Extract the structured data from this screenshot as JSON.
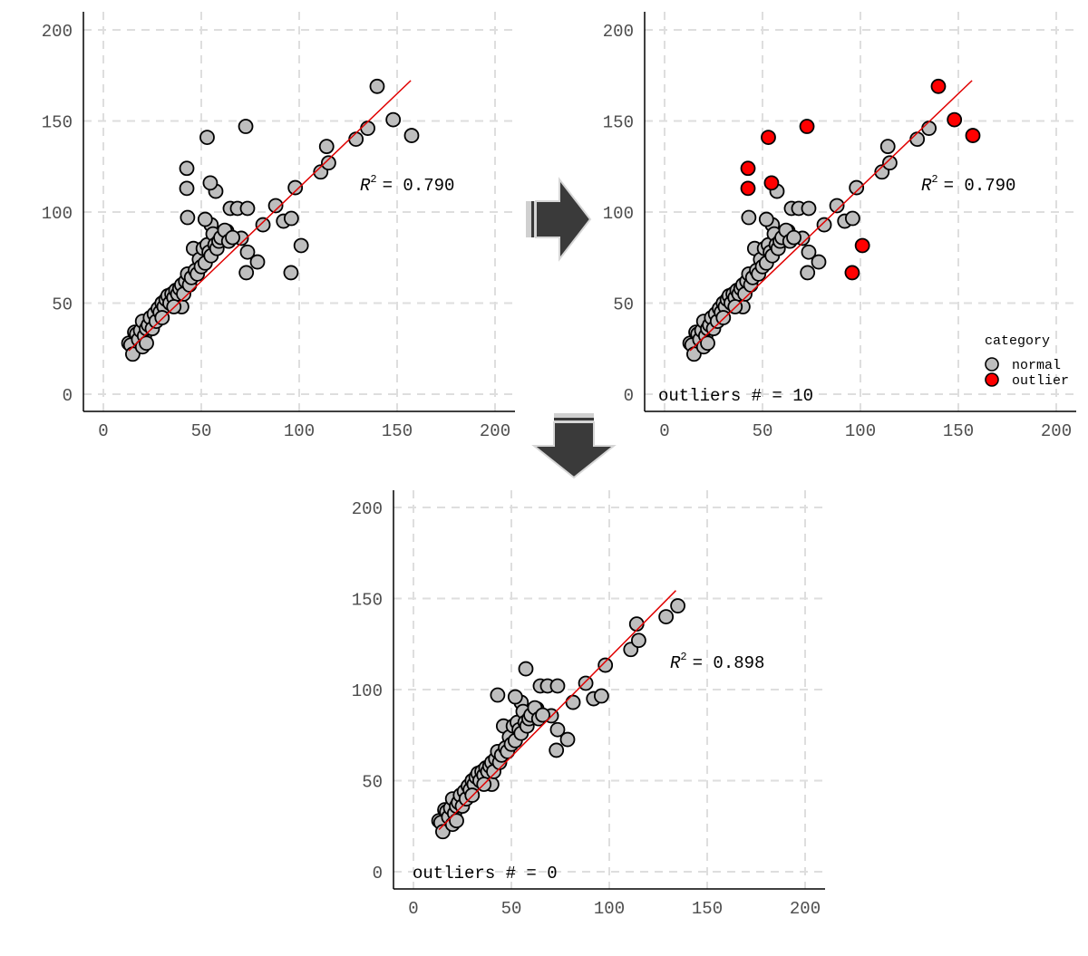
{
  "colors": {
    "normal": "#bebebe",
    "outlier": "#ff0000",
    "fit_line": "#e00000",
    "arrow": "#3a3a3a",
    "grid": "#dedede"
  },
  "legend": {
    "title": "category",
    "items": [
      "normal",
      "outlier"
    ]
  },
  "chart_data": [
    {
      "type": "scatter",
      "title": "",
      "xlabel": "",
      "ylabel": "",
      "xlim": [
        0,
        200
      ],
      "ylim": [
        0,
        200
      ],
      "xticks": [
        "0",
        "50",
        "100",
        "150",
        "200"
      ],
      "yticks": [
        "0",
        "50",
        "100",
        "150",
        "200"
      ],
      "grid": true,
      "includes_outliers": true,
      "colored_by_category": false,
      "annotation_r2": "= 0.790",
      "annotation_outliers": "",
      "fit": {
        "intercept": 10.5,
        "slope": 1.03,
        "x_range": [
          13,
          157
        ]
      }
    },
    {
      "type": "scatter",
      "title": "",
      "xlabel": "",
      "ylabel": "",
      "xlim": [
        0,
        200
      ],
      "ylim": [
        0,
        200
      ],
      "xticks": [
        "0",
        "50",
        "100",
        "150",
        "200"
      ],
      "yticks": [
        "0",
        "50",
        "100",
        "150",
        "200"
      ],
      "grid": true,
      "includes_outliers": true,
      "colored_by_category": true,
      "legend_position": "bottom-right",
      "annotation_r2": "= 0.790",
      "annotation_outliers": "outliers # = 10",
      "fit": {
        "intercept": 10.5,
        "slope": 1.03,
        "x_range": [
          13,
          157
        ]
      }
    },
    {
      "type": "scatter",
      "title": "",
      "xlabel": "",
      "ylabel": "",
      "xlim": [
        0,
        200
      ],
      "ylim": [
        0,
        200
      ],
      "xticks": [
        "0",
        "50",
        "100",
        "150",
        "200"
      ],
      "yticks": [
        "0",
        "50",
        "100",
        "150",
        "200"
      ],
      "grid": true,
      "includes_outliers": false,
      "colored_by_category": false,
      "annotation_r2": "= 0.898",
      "annotation_outliers": "outliers # = 0",
      "fit": {
        "intercept": 9,
        "slope": 1.085,
        "x_range": [
          13,
          134
        ]
      }
    }
  ],
  "points_normal": [
    [
      88,
      103.5
    ],
    [
      98,
      113.4
    ],
    [
      111,
      122
    ],
    [
      114,
      136
    ],
    [
      115,
      127
    ],
    [
      129,
      140
    ],
    [
      135,
      146
    ],
    [
      92,
      95
    ],
    [
      96,
      96.5
    ],
    [
      81.5,
      93
    ],
    [
      78.7,
      72.6
    ],
    [
      73,
      66.7
    ],
    [
      73.6,
      78
    ],
    [
      64.8,
      102
    ],
    [
      68.5,
      102
    ],
    [
      73.6,
      102
    ],
    [
      57.4,
      111.4
    ],
    [
      55,
      93
    ],
    [
      70.4,
      85.6
    ],
    [
      63,
      89.5
    ],
    [
      52,
      96
    ],
    [
      43,
      97
    ],
    [
      13,
      28
    ],
    [
      14,
      27
    ],
    [
      15,
      22
    ],
    [
      16,
      34
    ],
    [
      17,
      33
    ],
    [
      18,
      30
    ],
    [
      19,
      35
    ],
    [
      20,
      40
    ],
    [
      20,
      26
    ],
    [
      21,
      32
    ],
    [
      22,
      36
    ],
    [
      23,
      38
    ],
    [
      24,
      42
    ],
    [
      25,
      36
    ],
    [
      26,
      44
    ],
    [
      27,
      40
    ],
    [
      28,
      47
    ],
    [
      29,
      45
    ],
    [
      30,
      50
    ],
    [
      31,
      48
    ],
    [
      32,
      52
    ],
    [
      33,
      54
    ],
    [
      34,
      50
    ],
    [
      35,
      55
    ],
    [
      36,
      53
    ],
    [
      37,
      57
    ],
    [
      38,
      55
    ],
    [
      39,
      58
    ],
    [
      40,
      48
    ],
    [
      40,
      60
    ],
    [
      41,
      55
    ],
    [
      42,
      62
    ],
    [
      43,
      66
    ],
    [
      44,
      60
    ],
    [
      45,
      64
    ],
    [
      46,
      80
    ],
    [
      47,
      68
    ],
    [
      48,
      66
    ],
    [
      49,
      74
    ],
    [
      50,
      70
    ],
    [
      51,
      80
    ],
    [
      52,
      72
    ],
    [
      53,
      82
    ],
    [
      54,
      78
    ],
    [
      55,
      76
    ],
    [
      56,
      88
    ],
    [
      57,
      82
    ],
    [
      58,
      80
    ],
    [
      59,
      84
    ],
    [
      60,
      86
    ],
    [
      62,
      90
    ],
    [
      64,
      84
    ],
    [
      66,
      86
    ],
    [
      22,
      28
    ],
    [
      30,
      42
    ],
    [
      36,
      48
    ]
  ],
  "points_outlier": [
    [
      139.8,
      169
    ],
    [
      148,
      150.7
    ],
    [
      157.4,
      142
    ],
    [
      72.7,
      147
    ],
    [
      53,
      141
    ],
    [
      42.6,
      124
    ],
    [
      42.6,
      113
    ],
    [
      54.6,
      116
    ],
    [
      95.8,
      66.7
    ],
    [
      101,
      81.6
    ]
  ]
}
